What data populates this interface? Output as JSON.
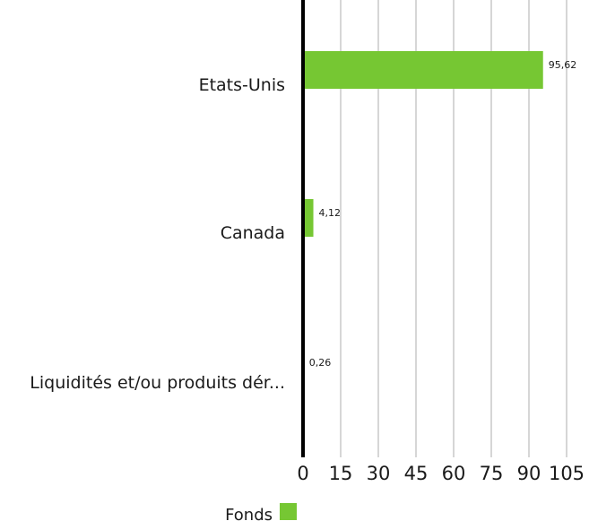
{
  "chart_data": {
    "type": "bar",
    "orientation": "horizontal",
    "categories": [
      "Etats-Unis",
      "Canada",
      "Liquidités et/ou produits dér..."
    ],
    "series": [
      {
        "name": "Fonds",
        "values": [
          95.62,
          4.12,
          0.26
        ],
        "value_labels": [
          "95,62",
          "4,12",
          "0,26"
        ],
        "color": "#76c733"
      }
    ],
    "xlim": [
      0,
      105
    ],
    "x_ticks": [
      0,
      15,
      30,
      45,
      60,
      75,
      90,
      105
    ],
    "x_tick_labels": [
      "0",
      "15",
      "30",
      "45",
      "60",
      "75",
      "90",
      "105"
    ],
    "grid": true,
    "legend_position": "bottom",
    "title": "",
    "xlabel": "",
    "ylabel": ""
  },
  "colors": {
    "bar": "#76c733",
    "grid": "#c8c8c8",
    "axis": "#000000",
    "text": "#1a1a1a"
  }
}
